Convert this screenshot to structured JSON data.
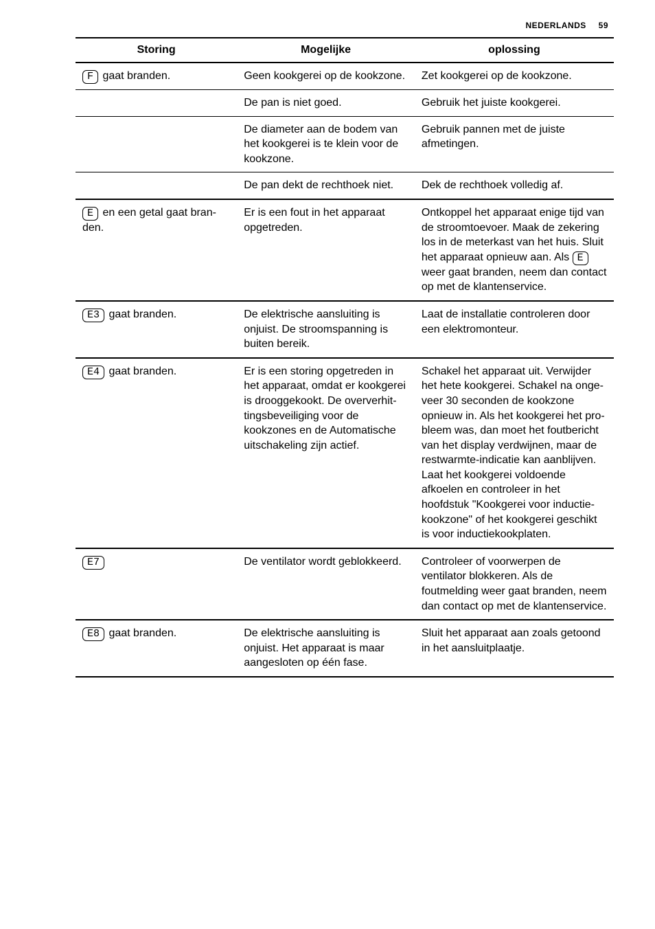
{
  "header": {
    "lang": "NEDERLANDS",
    "page": "59"
  },
  "columns": {
    "c1": "Storing",
    "c2": "Mogelijke",
    "c3": "oplossing"
  },
  "rows": [
    {
      "sym": "F",
      "c1": " gaat branden.",
      "c2": "Geen kookgerei op de kookzone.",
      "c3": "Zet kookgerei op de kook­zone."
    },
    {
      "c1": "",
      "c2": "De pan is niet goed.",
      "c3": "Gebruik het juiste kookge­rei."
    },
    {
      "c1": "",
      "c2": "De diameter aan de bo­dem van het kookgerei is te klein voor de kookzone.",
      "c3": "Gebruik pannen met de juiste afmetingen."
    },
    {
      "heavy": true,
      "c1": "",
      "c2": "De pan dekt de rechthoek niet.",
      "c3": "Dek de rechthoek volledig af."
    },
    {
      "heavy": true,
      "sym": "E",
      "c1": " en een getal gaat bran­den.",
      "c2": "Er is een fout in het appa­raat opgetreden.",
      "c3_pre": "Ontkoppel het apparaat enige tijd van de stroom­toevoer. Maak de zekering los in de meterkast van het huis. Sluit het apparaat opnieuw aan. Als ",
      "c3_sym": "E",
      "c3_post": " weer gaat branden, neem dan contact op met de klan­tenservice."
    },
    {
      "heavy": true,
      "sym": "E3",
      "c1": " gaat branden.",
      "c2": "De elektrische aansluiting is onjuist. De stroomspan­ning is buiten bereik.",
      "c3": "Laat de installatie contro­leren door een elektro­monteur."
    },
    {
      "heavy": true,
      "sym": "E4",
      "c1": " gaat branden.",
      "c2": "Er is een storing opgetre­den in het apparaat, om­dat er kookgerei is droog­gekookt. De oververhit­tingsbeveiliging voor de kookzones en de Automa­tische uitschakeling zijn actief.",
      "c3": "Schakel het apparaat uit. Verwijder het hete kook­gerei. Schakel na onge­veer 30 seconden de kookzone opnieuw in. Als het kookgerei het pro­bleem was, dan moet het foutbericht van het display verdwijnen, maar de rest­warmte-indicatie kan aan­blijven. Laat het kookgerei voldoende afkoelen en controleer in het hoofdstuk \"Kookgerei voor inductie­kookzone\" of het kookge­rei geschikt is voor induc­tiekookplaten."
    },
    {
      "heavy": true,
      "sym": "E7",
      "c1": "",
      "c2": "De ventilator wordt ge­blokkeerd.",
      "c3": "Controleer of voorwerpen de ventilator blokkeren. Als de foutmelding weer gaat branden, neem dan contact op met de klan­tenservice."
    },
    {
      "heavy": true,
      "sym": "E8",
      "c1": " gaat branden.",
      "c2": "De elektrische aansluiting is onjuist. Het apparaat is maar aangesloten op één fase.",
      "c3": "Sluit het apparaat aan zoals getoond in het aan­sluitplaatje."
    }
  ]
}
